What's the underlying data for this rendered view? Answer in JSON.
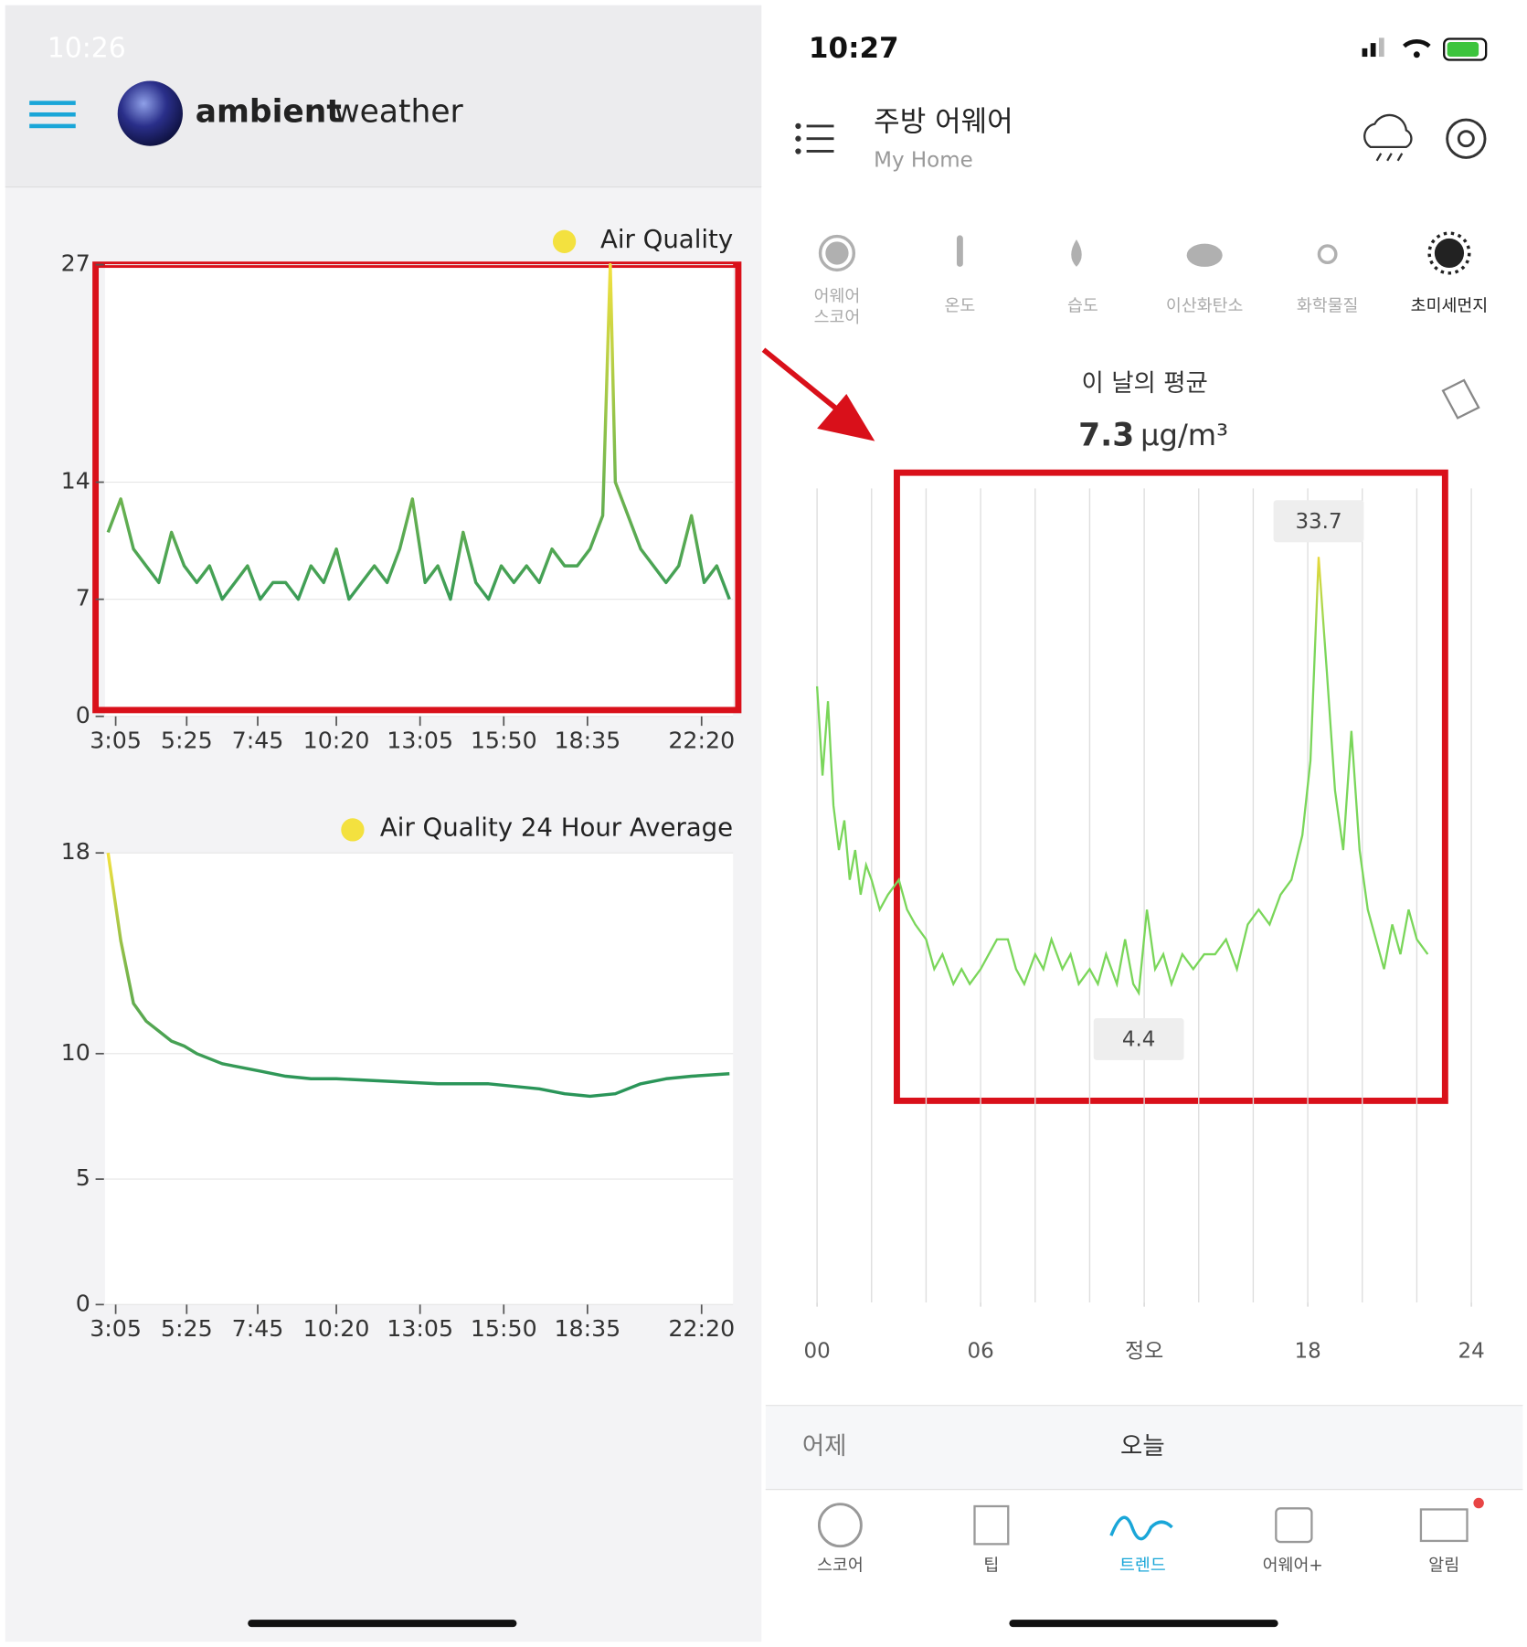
{
  "left": {
    "status_time": "10:26",
    "brand": [
      "ambient",
      "weather"
    ],
    "charts": [
      {
        "title": "Air Quality",
        "xlim": [
          164,
          1402
        ],
        "ylim": [
          0,
          27
        ],
        "yticks": [
          0,
          7,
          14,
          27
        ],
        "xticks": [
          {
            "value": 185,
            "label": "3:05"
          },
          {
            "value": 325,
            "label": "5:25"
          },
          {
            "value": 465,
            "label": "7:45"
          },
          {
            "value": 620,
            "label": "10:20"
          },
          {
            "value": 785,
            "label": "13:05"
          },
          {
            "value": 950,
            "label": "15:50"
          },
          {
            "value": 1115,
            "label": "18:35"
          },
          {
            "value": 1340,
            "label": "22:20"
          }
        ],
        "x": [
          170,
          195,
          220,
          245,
          270,
          295,
          320,
          345,
          370,
          395,
          420,
          445,
          470,
          495,
          520,
          545,
          570,
          595,
          620,
          645,
          670,
          695,
          720,
          745,
          770,
          795,
          820,
          845,
          870,
          895,
          920,
          945,
          970,
          995,
          1020,
          1045,
          1070,
          1095,
          1120,
          1145,
          1160,
          1170,
          1195,
          1220,
          1245,
          1270,
          1295,
          1320,
          1345,
          1370,
          1395
        ],
        "values": [
          11,
          13,
          10,
          9,
          8,
          11,
          9,
          8,
          9,
          7,
          8,
          9,
          7,
          8,
          8,
          7,
          9,
          8,
          10,
          7,
          8,
          9,
          8,
          10,
          13,
          8,
          9,
          7,
          11,
          8,
          7,
          9,
          8,
          9,
          8,
          10,
          9,
          9,
          10,
          12,
          27,
          14,
          12,
          10,
          9,
          8,
          9,
          12,
          8,
          9,
          7
        ]
      },
      {
        "title": "Air Quality 24 Hour Average",
        "xlim": [
          164,
          1402
        ],
        "ylim": [
          0,
          18
        ],
        "yticks": [
          0,
          5,
          10,
          18
        ],
        "xticks": [
          {
            "value": 185,
            "label": "3:05"
          },
          {
            "value": 325,
            "label": "5:25"
          },
          {
            "value": 465,
            "label": "7:45"
          },
          {
            "value": 620,
            "label": "10:20"
          },
          {
            "value": 785,
            "label": "13:05"
          },
          {
            "value": 950,
            "label": "15:50"
          },
          {
            "value": 1115,
            "label": "18:35"
          },
          {
            "value": 1340,
            "label": "22:20"
          }
        ],
        "x": [
          170,
          195,
          220,
          245,
          270,
          295,
          320,
          345,
          370,
          395,
          420,
          470,
          520,
          570,
          620,
          720,
          820,
          920,
          1020,
          1070,
          1120,
          1170,
          1220,
          1270,
          1320,
          1395
        ],
        "values": [
          18,
          14.5,
          12,
          11.3,
          10.9,
          10.5,
          10.3,
          10,
          9.8,
          9.6,
          9.5,
          9.3,
          9.1,
          9,
          9,
          8.9,
          8.8,
          8.8,
          8.6,
          8.4,
          8.3,
          8.4,
          8.8,
          9,
          9.1,
          9.2
        ]
      }
    ]
  },
  "right": {
    "status_time": "10:27",
    "device": "주방 어웨어",
    "location": "My Home",
    "tabs": [
      [
        "어웨어",
        "스코어"
      ],
      [
        "온도"
      ],
      [
        "습도"
      ],
      [
        "이산화탄소"
      ],
      [
        "화학물질"
      ],
      [
        "초미세먼지"
      ]
    ],
    "average_label": "이 날의 평균",
    "average_value": "7.3",
    "unit": "µg/m³",
    "chart": {
      "xlim": [
        0,
        24
      ],
      "ylim": [
        -16.4,
        38.3
      ],
      "xticks": [
        {
          "value": 0,
          "label": "00"
        },
        {
          "value": 6,
          "label": "06"
        },
        {
          "value": 12,
          "label": "정오"
        },
        {
          "value": 18,
          "label": "18"
        },
        {
          "value": 24,
          "label": "24"
        }
      ],
      "xgrid": [
        0,
        2,
        4,
        6,
        8,
        10,
        12,
        14,
        16,
        18,
        20,
        22,
        24
      ],
      "x": [
        0,
        0.2,
        0.4,
        0.6,
        0.8,
        1.0,
        1.2,
        1.4,
        1.6,
        1.8,
        2.0,
        2.3,
        2.6,
        3.0,
        3.3,
        3.6,
        4.0,
        4.3,
        4.6,
        5.0,
        5.3,
        5.6,
        6.0,
        6.3,
        6.6,
        7.0,
        7.3,
        7.6,
        8.0,
        8.3,
        8.6,
        9.0,
        9.3,
        9.6,
        10.0,
        10.3,
        10.6,
        11.0,
        11.3,
        11.6,
        11.8,
        12.1,
        12.4,
        12.7,
        13.0,
        13.4,
        13.8,
        14.2,
        14.6,
        15.0,
        15.4,
        15.8,
        16.2,
        16.6,
        17.0,
        17.4,
        17.8,
        18.1,
        18.4,
        18.7,
        19.0,
        19.3,
        19.6,
        19.9,
        20.2,
        20.5,
        20.8,
        21.1,
        21.4,
        21.7,
        22.0,
        22.4
      ],
      "values": [
        25,
        19,
        24,
        17,
        14,
        16,
        12,
        14,
        11,
        13,
        12,
        10,
        11,
        12,
        10,
        9,
        8,
        6,
        7,
        5,
        6,
        5,
        6,
        7,
        8,
        8,
        6,
        5,
        7,
        6,
        8,
        6,
        7,
        5,
        6,
        5,
        7,
        5,
        8,
        5,
        4.4,
        10,
        6,
        7,
        5,
        7,
        6,
        7,
        7,
        8,
        6,
        9,
        10,
        9,
        11,
        12,
        15,
        20,
        33.7,
        26,
        18,
        14,
        22,
        14,
        10,
        8,
        6,
        9,
        7,
        10,
        8,
        7
      ]
    },
    "day_tabs": [
      "어제",
      "오늘"
    ],
    "nav": [
      "스코어",
      "팁",
      "트렌드",
      "어웨어+",
      "알림"
    ]
  }
}
